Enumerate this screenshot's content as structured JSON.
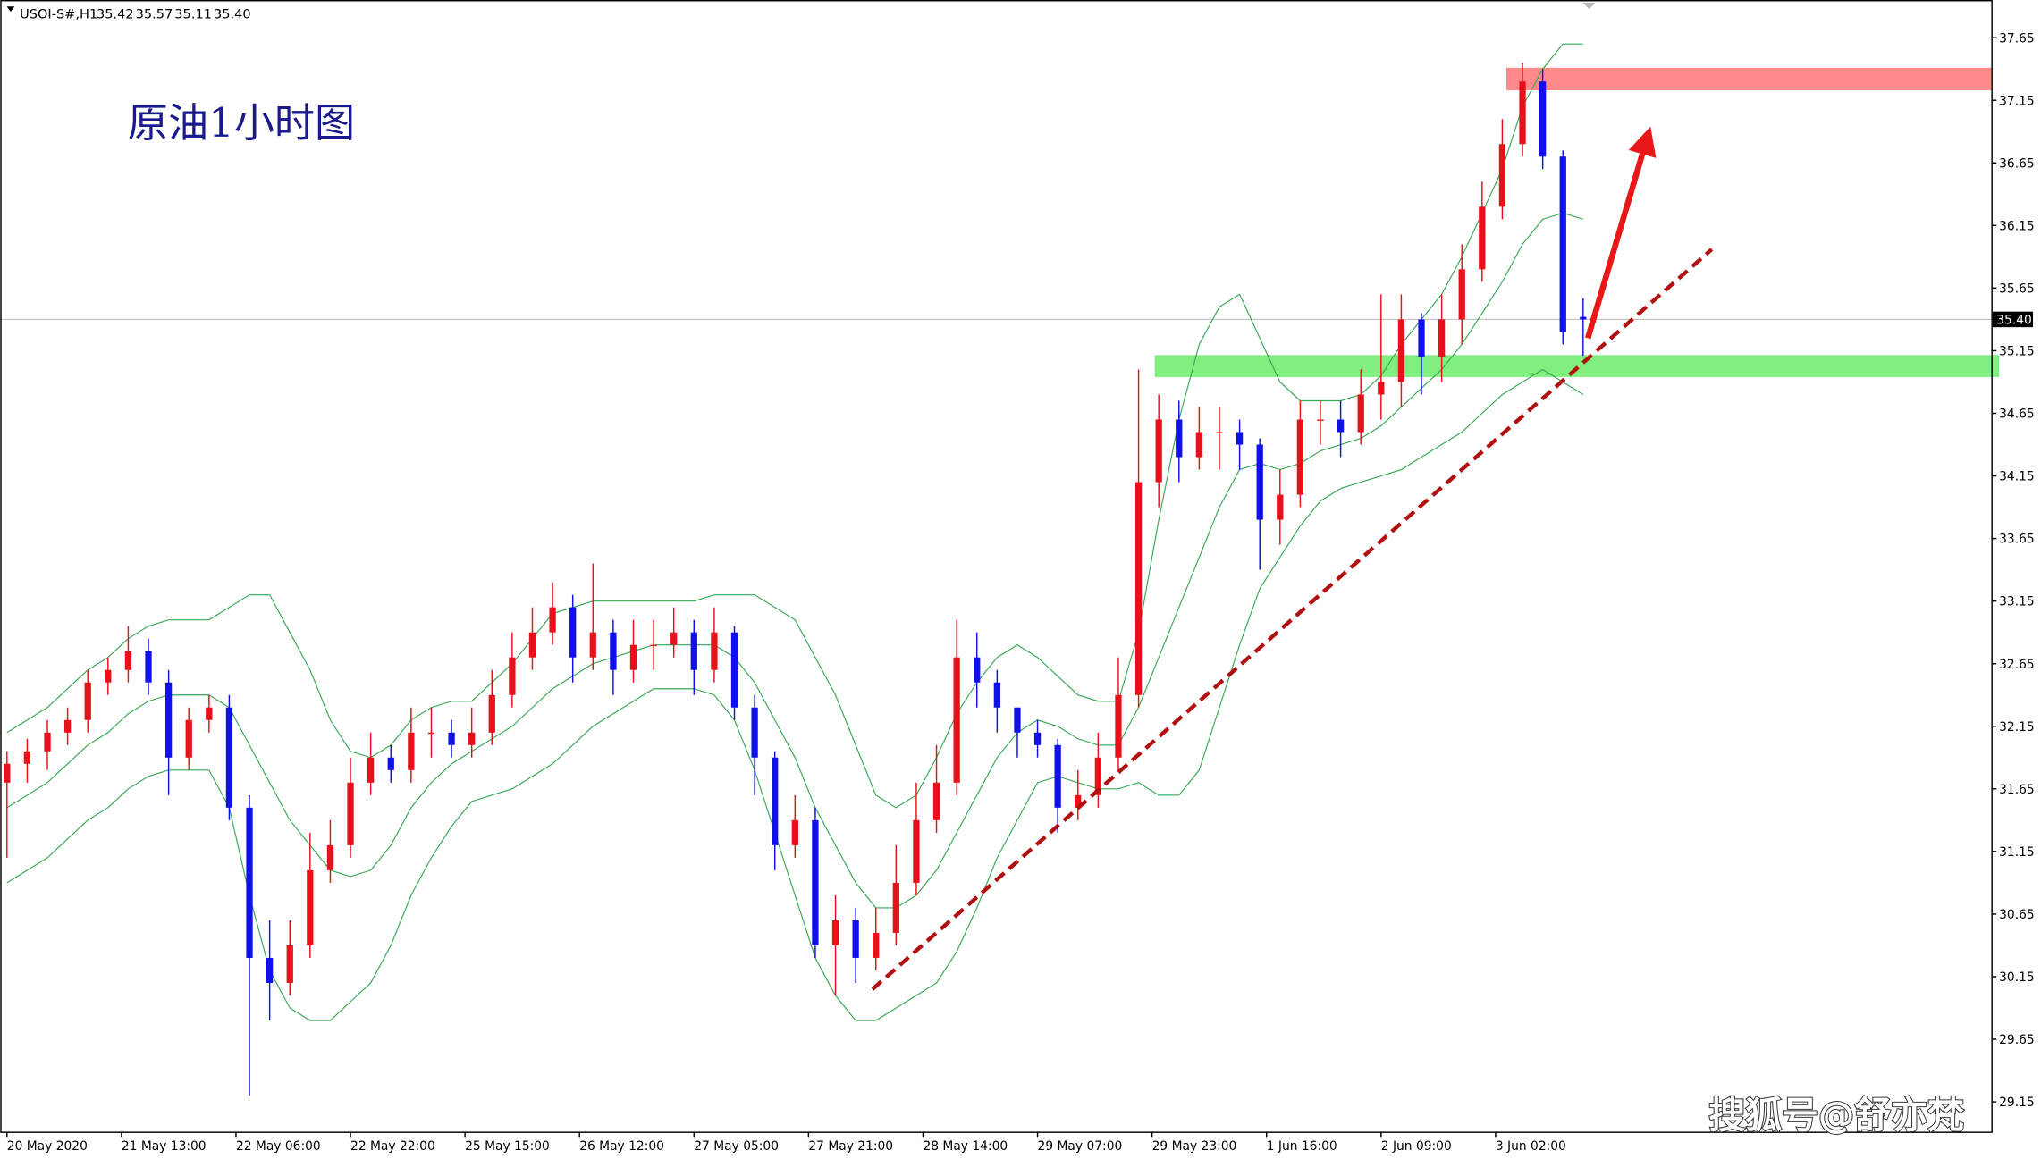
{
  "chart_data": {
    "type": "candlestick",
    "title": "USOI-S#,H1",
    "annotation_title": "原油1小时图",
    "watermark": "搜狐号@舒亦梵",
    "up_color": "#e8101a",
    "down_color": "#1010e8",
    "x": [
      0,
      3,
      6,
      9,
      12,
      15,
      18,
      21,
      24,
      27,
      30,
      33,
      36,
      39,
      42,
      45,
      48,
      51,
      54,
      57,
      60,
      63,
      66,
      69,
      72,
      75,
      78,
      81,
      84,
      87,
      90,
      93,
      96,
      99,
      102,
      105,
      108,
      111,
      114,
      117,
      120,
      123,
      126,
      129,
      132,
      135,
      138,
      141,
      144,
      147,
      150,
      153,
      156,
      159,
      162,
      165,
      168,
      171,
      174,
      177,
      180,
      183,
      186,
      189,
      192,
      195,
      198,
      201,
      204,
      207,
      210,
      213,
      216,
      219,
      222,
      225,
      228,
      231,
      234
    ],
    "open": [
      31.7,
      31.85,
      31.95,
      32.1,
      32.2,
      32.5,
      32.6,
      32.75,
      32.5,
      31.9,
      32.2,
      32.3,
      31.5,
      30.3,
      30.1,
      30.4,
      31.0,
      31.2,
      31.7,
      31.9,
      31.8,
      32.1,
      32.1,
      32.0,
      32.1,
      32.4,
      32.7,
      32.9,
      33.1,
      32.7,
      32.9,
      32.6,
      32.8,
      32.8,
      32.9,
      32.6,
      32.9,
      32.3,
      31.9,
      31.2,
      31.4,
      30.4,
      30.6,
      30.3,
      30.5,
      30.9,
      31.4,
      31.7,
      32.7,
      32.5,
      32.3,
      32.1,
      32.0,
      31.5,
      31.6,
      31.9,
      32.4,
      34.1,
      34.6,
      34.3,
      34.5,
      34.5,
      34.4,
      33.8,
      34.0,
      34.6,
      34.6,
      34.5,
      34.8,
      34.9,
      35.4,
      35.1,
      35.4,
      35.8,
      36.3,
      36.8,
      37.3,
      36.7,
      35.42
    ],
    "high": [
      31.95,
      32.05,
      32.2,
      32.3,
      32.6,
      32.7,
      32.95,
      32.85,
      32.6,
      32.3,
      32.4,
      32.4,
      31.6,
      30.6,
      30.6,
      31.3,
      31.4,
      31.9,
      32.1,
      32.0,
      32.3,
      32.3,
      32.2,
      32.3,
      32.6,
      32.9,
      33.1,
      33.3,
      33.2,
      33.45,
      33.0,
      33.0,
      33.0,
      33.1,
      33.0,
      33.1,
      32.95,
      32.4,
      31.95,
      31.6,
      31.5,
      30.8,
      30.7,
      30.7,
      31.2,
      31.7,
      32.0,
      33.0,
      32.9,
      32.6,
      32.3,
      32.2,
      32.05,
      31.8,
      32.1,
      32.7,
      35.0,
      34.8,
      34.75,
      34.7,
      34.7,
      34.6,
      34.45,
      34.2,
      34.75,
      34.75,
      34.75,
      35.0,
      35.6,
      35.6,
      35.45,
      35.6,
      36.0,
      36.5,
      37.0,
      37.45,
      37.4,
      36.75,
      35.57
    ],
    "low": [
      31.1,
      31.7,
      31.8,
      32.0,
      32.1,
      32.4,
      32.5,
      32.4,
      31.6,
      31.8,
      32.1,
      31.4,
      29.2,
      29.8,
      30.0,
      30.3,
      30.9,
      31.1,
      31.6,
      31.7,
      31.7,
      31.9,
      31.9,
      31.9,
      32.0,
      32.3,
      32.6,
      32.8,
      32.5,
      32.6,
      32.4,
      32.5,
      32.6,
      32.7,
      32.4,
      32.5,
      32.2,
      31.6,
      31.0,
      31.1,
      30.3,
      30.0,
      30.1,
      30.2,
      30.4,
      30.8,
      31.3,
      31.6,
      32.3,
      32.1,
      31.9,
      31.9,
      31.3,
      31.4,
      31.5,
      31.8,
      32.3,
      33.9,
      34.1,
      34.2,
      34.2,
      34.2,
      33.4,
      33.6,
      33.9,
      34.4,
      34.3,
      34.4,
      34.6,
      34.7,
      34.8,
      34.9,
      35.2,
      35.7,
      36.2,
      36.7,
      36.6,
      35.2,
      35.11
    ],
    "close": [
      31.85,
      31.95,
      32.1,
      32.2,
      32.5,
      32.6,
      32.75,
      32.5,
      31.9,
      32.2,
      32.3,
      31.5,
      30.3,
      30.1,
      30.4,
      31.0,
      31.2,
      31.7,
      31.9,
      31.8,
      32.1,
      32.1,
      32.0,
      32.1,
      32.4,
      32.7,
      32.9,
      33.1,
      32.7,
      32.9,
      32.6,
      32.8,
      32.8,
      32.9,
      32.6,
      32.9,
      32.3,
      31.9,
      31.2,
      31.4,
      30.4,
      30.6,
      30.3,
      30.5,
      30.9,
      31.4,
      31.7,
      32.7,
      32.5,
      32.3,
      32.1,
      32.0,
      31.5,
      31.6,
      31.9,
      32.4,
      34.1,
      34.6,
      34.3,
      34.5,
      34.5,
      34.4,
      33.8,
      34.0,
      34.6,
      34.6,
      34.5,
      34.8,
      34.9,
      35.4,
      35.1,
      35.4,
      35.8,
      36.3,
      36.8,
      37.3,
      36.7,
      35.3,
      35.4
    ],
    "bollinger": {
      "color": "#3aa856",
      "upper": [
        32.1,
        32.2,
        32.3,
        32.45,
        32.6,
        32.7,
        32.85,
        32.95,
        33.0,
        33.0,
        33.0,
        33.1,
        33.2,
        33.2,
        32.9,
        32.6,
        32.2,
        31.95,
        31.9,
        32.0,
        32.2,
        32.3,
        32.35,
        32.35,
        32.5,
        32.65,
        32.85,
        33.05,
        33.1,
        33.15,
        33.15,
        33.15,
        33.15,
        33.15,
        33.15,
        33.2,
        33.2,
        33.2,
        33.1,
        33.0,
        32.7,
        32.4,
        32.0,
        31.6,
        31.5,
        31.6,
        31.9,
        32.25,
        32.5,
        32.7,
        32.8,
        32.7,
        32.55,
        32.4,
        32.35,
        32.35,
        32.9,
        33.8,
        34.6,
        35.2,
        35.5,
        35.6,
        35.25,
        34.9,
        34.75,
        34.75,
        34.75,
        34.8,
        34.95,
        35.2,
        35.4,
        35.6,
        35.9,
        36.25,
        36.6,
        37.1,
        37.4,
        37.6,
        37.6
      ],
      "middle": [
        31.5,
        31.6,
        31.7,
        31.85,
        32.0,
        32.1,
        32.25,
        32.35,
        32.4,
        32.4,
        32.4,
        32.3,
        32.0,
        31.7,
        31.4,
        31.2,
        31.0,
        30.95,
        31.0,
        31.2,
        31.5,
        31.7,
        31.85,
        31.95,
        32.05,
        32.15,
        32.3,
        32.45,
        32.55,
        32.65,
        32.7,
        32.75,
        32.8,
        32.8,
        32.8,
        32.8,
        32.7,
        32.5,
        32.2,
        31.9,
        31.5,
        31.2,
        30.9,
        30.7,
        30.7,
        30.8,
        31.0,
        31.3,
        31.6,
        31.9,
        32.1,
        32.2,
        32.15,
        32.05,
        32.0,
        32.0,
        32.3,
        32.7,
        33.1,
        33.5,
        33.9,
        34.2,
        34.25,
        34.2,
        34.25,
        34.35,
        34.4,
        34.45,
        34.55,
        34.7,
        34.85,
        35.0,
        35.2,
        35.45,
        35.7,
        36.0,
        36.2,
        36.25,
        36.2
      ],
      "lower": [
        30.9,
        31.0,
        31.1,
        31.25,
        31.4,
        31.5,
        31.65,
        31.75,
        31.8,
        31.8,
        31.8,
        31.5,
        30.8,
        30.2,
        29.9,
        29.8,
        29.8,
        29.95,
        30.1,
        30.4,
        30.8,
        31.1,
        31.35,
        31.55,
        31.6,
        31.65,
        31.75,
        31.85,
        32.0,
        32.15,
        32.25,
        32.35,
        32.45,
        32.45,
        32.45,
        32.4,
        32.2,
        31.8,
        31.3,
        30.8,
        30.3,
        30.0,
        29.8,
        29.8,
        29.9,
        30.0,
        30.1,
        30.35,
        30.7,
        31.1,
        31.4,
        31.7,
        31.75,
        31.7,
        31.65,
        31.65,
        31.7,
        31.6,
        31.6,
        31.8,
        32.3,
        32.8,
        33.25,
        33.5,
        33.75,
        33.95,
        34.05,
        34.1,
        34.15,
        34.2,
        34.3,
        34.4,
        34.5,
        34.65,
        34.8,
        34.9,
        35.0,
        34.9,
        34.8
      ]
    },
    "zones": [
      {
        "color": "#ff8a8a",
        "x": [
          222.6,
          294.6
        ],
        "y": [
          37.23,
          37.41
        ]
      },
      {
        "color": "#7ff07f",
        "x": [
          170.4,
          296
        ],
        "y": [
          34.94,
          35.115
        ]
      }
    ],
    "trendline": {
      "color": "#b01010",
      "x": [
        128.5,
        253.1
      ],
      "y": [
        30.05,
        35.96
      ]
    },
    "arrow": {
      "color": "#e81818",
      "x": [
        234.7,
        244.0
      ],
      "y": [
        35.25,
        36.94
      ]
    },
    "last_price": {
      "value": 35.4,
      "label": "35.40"
    },
    "xlim": [
      -1,
      294.6
    ],
    "ylim": [
      28.912,
      37.951
    ],
    "xticks": [
      {
        "value": 0,
        "label": "20 May 2020"
      },
      {
        "value": 17,
        "label": "21 May 13:00"
      },
      {
        "value": 34,
        "label": "22 May 06:00"
      },
      {
        "value": 51,
        "label": "22 May 22:00"
      },
      {
        "value": 68,
        "label": "25 May 15:00"
      },
      {
        "value": 85,
        "label": "26 May 12:00"
      },
      {
        "value": 102,
        "label": "27 May 05:00"
      },
      {
        "value": 119,
        "label": "27 May 21:00"
      },
      {
        "value": 136,
        "label": "28 May 14:00"
      },
      {
        "value": 153,
        "label": "29 May 07:00"
      },
      {
        "value": 170,
        "label": "29 May 23:00"
      },
      {
        "value": 187,
        "label": "1 Jun 16:00"
      },
      {
        "value": 204,
        "label": "2 Jun 09:00"
      },
      {
        "value": 221,
        "label": "3 Jun 02:00"
      }
    ],
    "yticks": [
      29.15,
      29.65,
      30.15,
      30.65,
      31.15,
      31.65,
      32.15,
      32.65,
      33.15,
      33.65,
      34.15,
      34.65,
      35.15,
      35.65,
      36.15,
      36.65,
      37.15,
      37.65
    ]
  }
}
